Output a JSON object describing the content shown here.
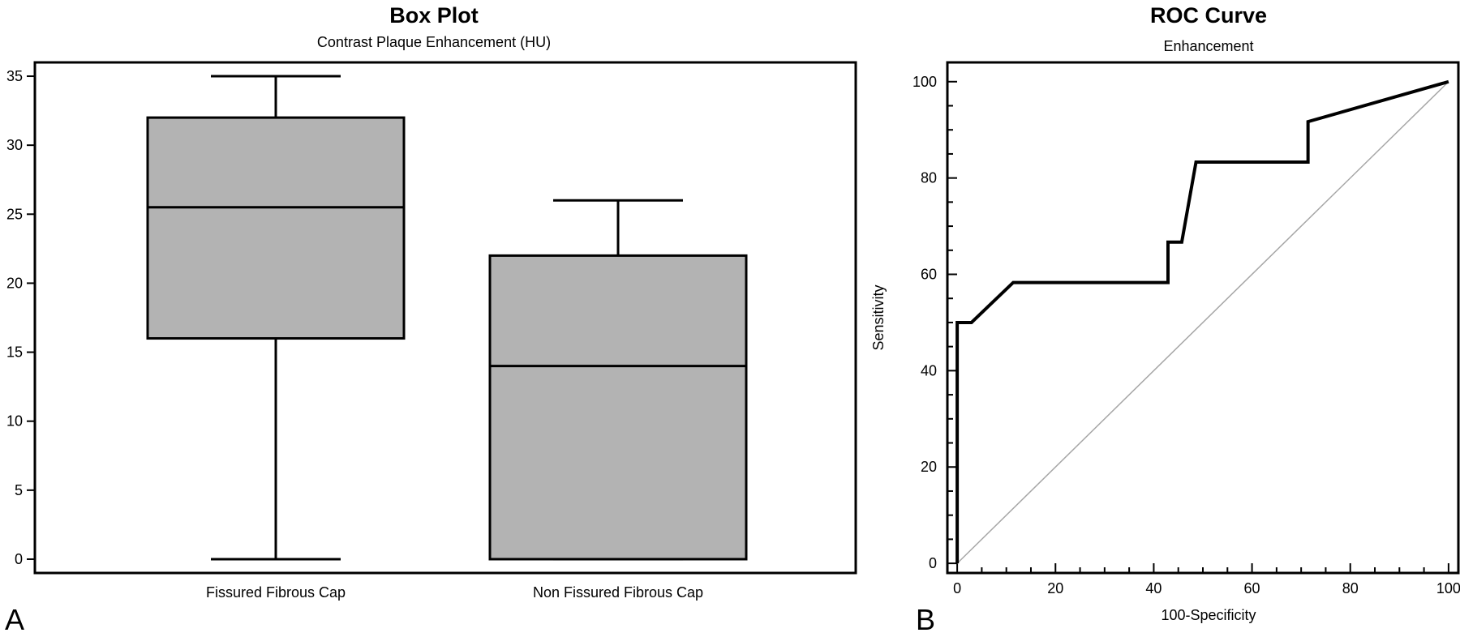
{
  "panel_labels": [
    "A",
    "B"
  ],
  "chart_data": [
    {
      "type": "box",
      "title": "Box Plot",
      "subtitle": "Contrast Plaque Enhancement (HU)",
      "xlabel": "",
      "ylabel": "",
      "ylim": [
        -1,
        36
      ],
      "yticks": [
        0,
        5,
        10,
        15,
        20,
        25,
        30,
        35
      ],
      "categories": [
        "Fissured Fibrous Cap",
        "Non Fissured Fibrous Cap"
      ],
      "boxes": [
        {
          "category": "Fissured Fibrous Cap",
          "min": 0,
          "q1": 16,
          "median": 25.5,
          "q3": 32,
          "max": 35
        },
        {
          "category": "Non Fissured Fibrous Cap",
          "min": 0,
          "q1": 0,
          "median": 14,
          "q3": 22,
          "max": 26
        }
      ],
      "box_fill": "#b3b3b3",
      "grid": false
    },
    {
      "type": "line",
      "title": "ROC Curve",
      "subtitle": "Enhancement",
      "xlabel": "100-Specificity",
      "ylabel": "Sensitivity",
      "xlim": [
        -2,
        102
      ],
      "ylim": [
        -2,
        104
      ],
      "xticks": [
        0,
        20,
        40,
        60,
        80,
        100
      ],
      "yticks": [
        0,
        20,
        40,
        60,
        80,
        100
      ],
      "series": [
        {
          "x": [
            0,
            0,
            2.9,
            11.4,
            42.9,
            42.9,
            45.7,
            48.6,
            71.4,
            71.4,
            100
          ],
          "y": [
            0,
            50,
            50,
            58.3,
            58.3,
            66.7,
            66.7,
            83.3,
            83.3,
            91.7,
            100
          ]
        }
      ],
      "reference_line": {
        "x": [
          0,
          100
        ],
        "y": [
          0,
          100
        ]
      },
      "grid": false
    }
  ]
}
